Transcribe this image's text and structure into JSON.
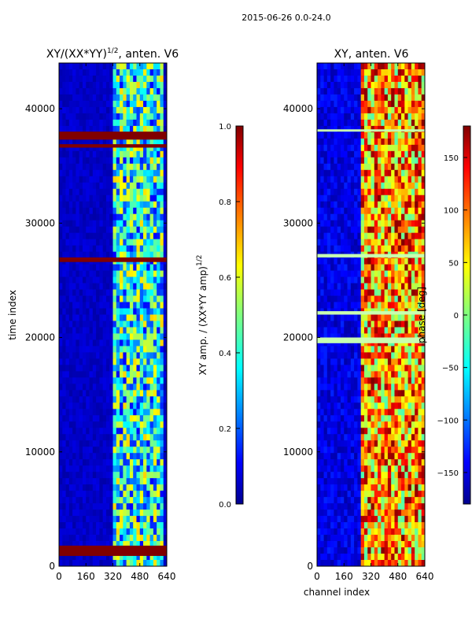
{
  "figure_title": "2015-06-26 0.0-24.0",
  "colors": {
    "background": "#ffffff",
    "axis": "#000000",
    "low": "#00008f",
    "high": "#800000"
  },
  "chart_data": [
    {
      "type": "heatmap",
      "title_main": "XY/(XX*YY)",
      "title_exp": "1/2",
      "title_suffix": ", anten. V6",
      "xlabel": "",
      "ylabel": "time index",
      "xlim": [
        0,
        640
      ],
      "ylim": [
        0,
        44000
      ],
      "x_ticks": [
        0,
        160,
        320,
        480,
        640
      ],
      "y_ticks": [
        0,
        10000,
        20000,
        30000,
        40000
      ],
      "colorbar": {
        "label": "XY amp. / (XX*YY amp)",
        "label_exp": "1/2",
        "range": [
          0.0,
          1.0
        ],
        "ticks": [
          "0.0",
          "0.2",
          "0.4",
          "0.6",
          "0.8",
          "1.0"
        ],
        "tick_values": [
          0.0,
          0.2,
          0.4,
          0.6,
          0.8,
          1.0
        ]
      },
      "colormap": "jet",
      "active_channel_range": [
        330,
        615
      ],
      "saturated_time_bands": [
        [
          37300,
          38000
        ],
        [
          36600,
          36900
        ],
        [
          26600,
          27000
        ],
        [
          900,
          1800
        ]
      ]
    },
    {
      "type": "heatmap",
      "title_main": "XY, anten. V6",
      "xlabel": "channel index",
      "ylabel": "",
      "xlim": [
        0,
        640
      ],
      "ylim": [
        0,
        44000
      ],
      "x_ticks": [
        0,
        160,
        320,
        480,
        640
      ],
      "y_ticks": [
        0,
        10000,
        20000,
        30000,
        40000
      ],
      "colorbar": {
        "label": "phase [deg]",
        "range": [
          -180,
          180
        ],
        "ticks": [
          "−150",
          "−100",
          "−50",
          "0",
          "50",
          "100",
          "150"
        ],
        "tick_values": [
          -150,
          -100,
          -50,
          0,
          50,
          100,
          150
        ]
      },
      "colormap": "jet",
      "active_channel_range": [
        270,
        620
      ],
      "flagged_time_bands": [
        [
          19500,
          20000
        ],
        [
          38000,
          38200
        ],
        [
          27000,
          27300
        ],
        [
          22000,
          22300
        ]
      ]
    }
  ]
}
